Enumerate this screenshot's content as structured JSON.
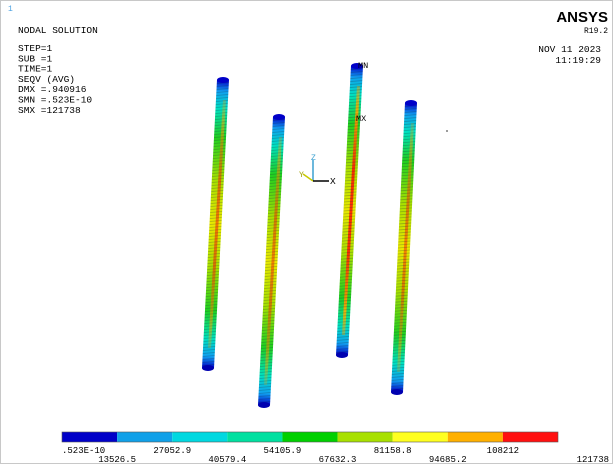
{
  "header": {
    "marker": "1",
    "title": "NODAL SOLUTION",
    "info": [
      "STEP=1",
      "SUB =1",
      "TIME=1",
      "SEQV     (AVG)",
      "DMX =.940916",
      "SMN =.523E-10",
      "SMX =121738"
    ],
    "logo": "ANSYS",
    "version": "R19.2",
    "date": "NOV 11 2023",
    "time": "11:19:29"
  },
  "viewport": {
    "min_label": "MN",
    "max_label": "MX",
    "triad": {
      "x": "X",
      "y": "Y",
      "z": "Z"
    }
  },
  "legend": {
    "colors": [
      "#0000c8",
      "#10a0e8",
      "#00d8e0",
      "#00e0a0",
      "#00d000",
      "#a8e000",
      "#ffff20",
      "#ffb000",
      "#ff1010"
    ],
    "labels": [
      ".523E-10",
      "13526.5",
      "27052.9",
      "40579.4",
      "54105.9",
      "67632.3",
      "81158.8",
      "94685.2",
      "108212",
      "121738"
    ]
  }
}
